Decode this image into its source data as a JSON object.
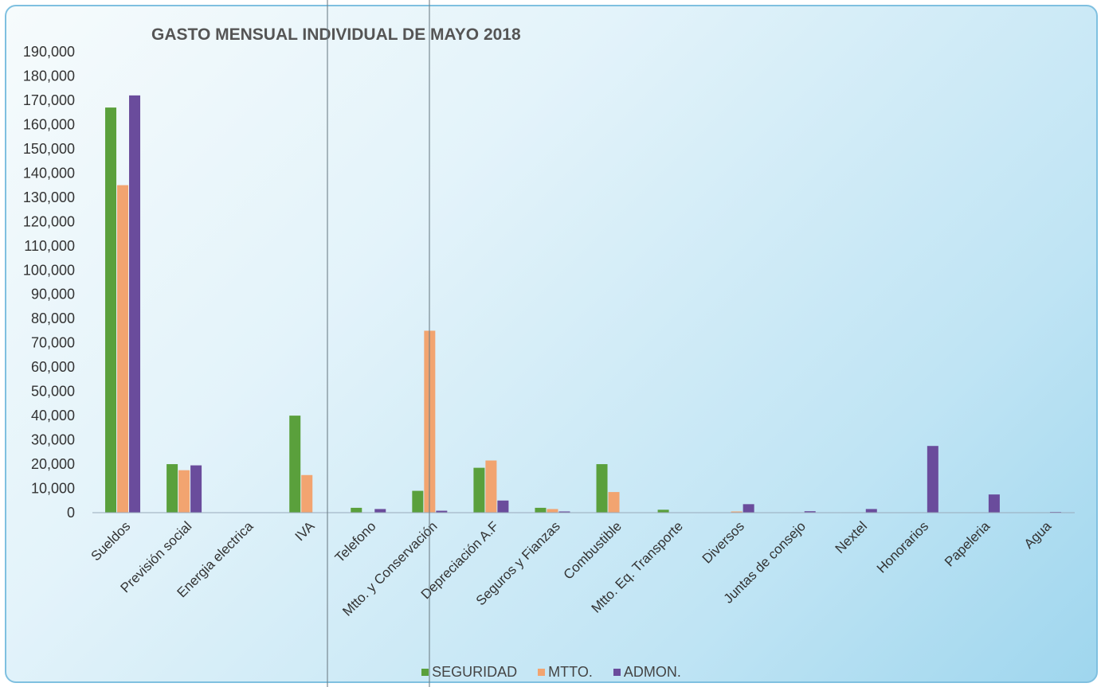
{
  "chart_data": {
    "type": "bar",
    "title": "GASTO MENSUAL INDIVIDUAL DE MAYO 2018",
    "xlabel": "",
    "ylabel": "",
    "ylim": [
      0,
      190000
    ],
    "yticks": [
      "0",
      "10,000",
      "20,000",
      "30,000",
      "40,000",
      "50,000",
      "60,000",
      "70,000",
      "80,000",
      "90,000",
      "100,000",
      "110,000",
      "120,000",
      "130,000",
      "140,000",
      "150,000",
      "160,000",
      "170,000",
      "180,000",
      "190,000"
    ],
    "grid": false,
    "legend_position": "bottom",
    "categories": [
      "Sueldos",
      "Previsión social",
      "Energia electrica",
      "IVA",
      "Telefono",
      "Mtto. y Conservación",
      "Depreciación A.F",
      "Seguros y Fianzas",
      "Combustible",
      "Mtto. Eq. Transporte",
      "Diversos",
      "Juntas de consejo",
      "Nextel",
      "Honorarios",
      "Papeleria",
      "Agua"
    ],
    "series": [
      {
        "name": "SEGURIDAD",
        "color": "#5aa03c",
        "values": [
          167000,
          20000,
          0,
          40000,
          2000,
          9000,
          18500,
          2000,
          20000,
          1200,
          0,
          0,
          0,
          0,
          0,
          0
        ]
      },
      {
        "name": "MTTO.",
        "color": "#f2a470",
        "values": [
          135000,
          17500,
          0,
          15500,
          0,
          75000,
          21500,
          1500,
          8500,
          0,
          500,
          0,
          0,
          0,
          0,
          0
        ]
      },
      {
        "name": "ADMON.",
        "color": "#6a4c9c",
        "values": [
          172000,
          19500,
          0,
          0,
          1500,
          800,
          5000,
          500,
          0,
          0,
          3500,
          600,
          1500,
          27500,
          7500,
          300
        ]
      }
    ]
  }
}
